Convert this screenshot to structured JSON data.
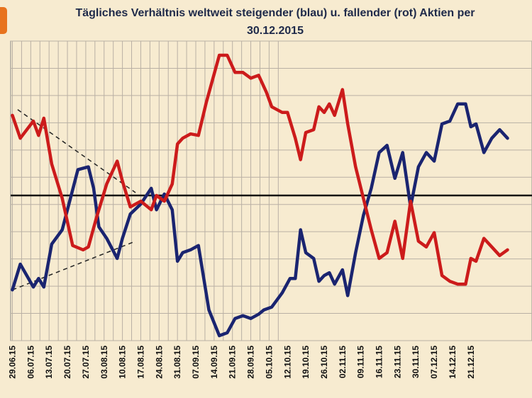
{
  "chart_data": {
    "type": "line",
    "title": "Tägliches Verhältnis weltweit steigender (blau) u. fallender (rot) Aktien per 30.12.2015",
    "title_lines": [
      "Tägliches Verhältnis weltweit steigender (blau) u. fallender (rot) Aktien per",
      "30.12.2015"
    ],
    "xlabel": "",
    "ylabel": "",
    "x_tick_labels": [
      "29.06.15",
      "06.07.15",
      "13.07.15",
      "20.07.15",
      "27.07.15",
      "03.08.15",
      "10.08.15",
      "17.08.15",
      "24.08.15",
      "31.08.15",
      "07.09.15",
      "14.09.15",
      "21.09.15",
      "28.09.15",
      "05.10.15",
      "12.10.15",
      "19.10.15",
      "26.10.15",
      "02.11.15",
      "09.11.15",
      "16.11.15",
      "23.11.15",
      "30.11.15",
      "07.12.15",
      "14.12.15",
      "21.12.15"
    ],
    "days": 189,
    "ylim": [
      -1,
      1
    ],
    "reference_line": 0,
    "grid": true,
    "colors": {
      "blue": "#1a2470",
      "red": "#cc1b1b",
      "background": "#f7ebd0",
      "grid": "#b9b0a4",
      "accent": "#e8731e"
    },
    "series": [
      {
        "color": "blue",
        "points": [
          [
            0,
            -0.66
          ],
          [
            3,
            -0.48
          ],
          [
            8,
            -0.64
          ],
          [
            10,
            -0.58
          ],
          [
            12,
            -0.64
          ],
          [
            15,
            -0.34
          ],
          [
            19,
            -0.24
          ],
          [
            25,
            0.18
          ],
          [
            29,
            0.2
          ],
          [
            31,
            0.05
          ],
          [
            33,
            -0.22
          ],
          [
            36,
            -0.3
          ],
          [
            40,
            -0.44
          ],
          [
            42,
            -0.3
          ],
          [
            45,
            -0.13
          ],
          [
            49,
            -0.06
          ],
          [
            53,
            0.05
          ],
          [
            55,
            -0.1
          ],
          [
            58,
            0.01
          ],
          [
            61,
            -0.1
          ],
          [
            63,
            -0.46
          ],
          [
            65,
            -0.4
          ],
          [
            68,
            -0.38
          ],
          [
            71,
            -0.35
          ],
          [
            75,
            -0.8
          ],
          [
            79,
            -0.98
          ],
          [
            82,
            -0.96
          ],
          [
            85,
            -0.86
          ],
          [
            88,
            -0.84
          ],
          [
            91,
            -0.86
          ],
          [
            94,
            -0.83
          ],
          [
            96,
            -0.8
          ],
          [
            99,
            -0.78
          ],
          [
            103,
            -0.68
          ],
          [
            106,
            -0.58
          ],
          [
            108,
            -0.58
          ],
          [
            110,
            -0.24
          ],
          [
            112,
            -0.4
          ],
          [
            115,
            -0.44
          ],
          [
            117,
            -0.6
          ],
          [
            119,
            -0.56
          ],
          [
            121,
            -0.54
          ],
          [
            123,
            -0.62
          ],
          [
            126,
            -0.52
          ],
          [
            128,
            -0.7
          ],
          [
            131,
            -0.4
          ],
          [
            134,
            -0.14
          ],
          [
            137,
            0.05
          ],
          [
            140,
            0.3
          ],
          [
            143,
            0.35
          ],
          [
            146,
            0.12
          ],
          [
            149,
            0.3
          ],
          [
            152,
            -0.08
          ],
          [
            155,
            0.2
          ],
          [
            158,
            0.3
          ],
          [
            161,
            0.24
          ],
          [
            164,
            0.5
          ],
          [
            167,
            0.52
          ],
          [
            170,
            0.64
          ],
          [
            173,
            0.64
          ],
          [
            175,
            0.48
          ],
          [
            177,
            0.5
          ],
          [
            180,
            0.3
          ],
          [
            183,
            0.4
          ],
          [
            186,
            0.46
          ],
          [
            189,
            0.4
          ]
        ]
      },
      {
        "color": "red",
        "points": [
          [
            0,
            0.56
          ],
          [
            3,
            0.4
          ],
          [
            8,
            0.52
          ],
          [
            10,
            0.42
          ],
          [
            12,
            0.54
          ],
          [
            15,
            0.22
          ],
          [
            19,
            -0.02
          ],
          [
            23,
            -0.35
          ],
          [
            27,
            -0.38
          ],
          [
            29,
            -0.36
          ],
          [
            32,
            -0.16
          ],
          [
            36,
            0.08
          ],
          [
            40,
            0.24
          ],
          [
            42,
            0.1
          ],
          [
            45,
            -0.08
          ],
          [
            49,
            -0.04
          ],
          [
            53,
            -0.1
          ],
          [
            55,
            0
          ],
          [
            58,
            -0.04
          ],
          [
            61,
            0.08
          ],
          [
            63,
            0.36
          ],
          [
            65,
            0.4
          ],
          [
            68,
            0.43
          ],
          [
            71,
            0.42
          ],
          [
            74,
            0.65
          ],
          [
            79,
            0.98
          ],
          [
            82,
            0.98
          ],
          [
            85,
            0.86
          ],
          [
            88,
            0.86
          ],
          [
            91,
            0.82
          ],
          [
            94,
            0.84
          ],
          [
            97,
            0.72
          ],
          [
            99,
            0.62
          ],
          [
            103,
            0.58
          ],
          [
            105,
            0.58
          ],
          [
            108,
            0.4
          ],
          [
            110,
            0.25
          ],
          [
            112,
            0.44
          ],
          [
            115,
            0.46
          ],
          [
            117,
            0.62
          ],
          [
            119,
            0.58
          ],
          [
            121,
            0.64
          ],
          [
            123,
            0.56
          ],
          [
            126,
            0.74
          ],
          [
            128,
            0.5
          ],
          [
            131,
            0.2
          ],
          [
            134,
            -0.02
          ],
          [
            137,
            -0.24
          ],
          [
            140,
            -0.44
          ],
          [
            143,
            -0.4
          ],
          [
            146,
            -0.18
          ],
          [
            149,
            -0.44
          ],
          [
            152,
            -0.04
          ],
          [
            155,
            -0.32
          ],
          [
            158,
            -0.36
          ],
          [
            161,
            -0.26
          ],
          [
            164,
            -0.56
          ],
          [
            167,
            -0.6
          ],
          [
            170,
            -0.62
          ],
          [
            173,
            -0.62
          ],
          [
            175,
            -0.44
          ],
          [
            177,
            -0.46
          ],
          [
            180,
            -0.3
          ],
          [
            183,
            -0.36
          ],
          [
            186,
            -0.42
          ],
          [
            189,
            -0.38
          ]
        ]
      }
    ]
  }
}
